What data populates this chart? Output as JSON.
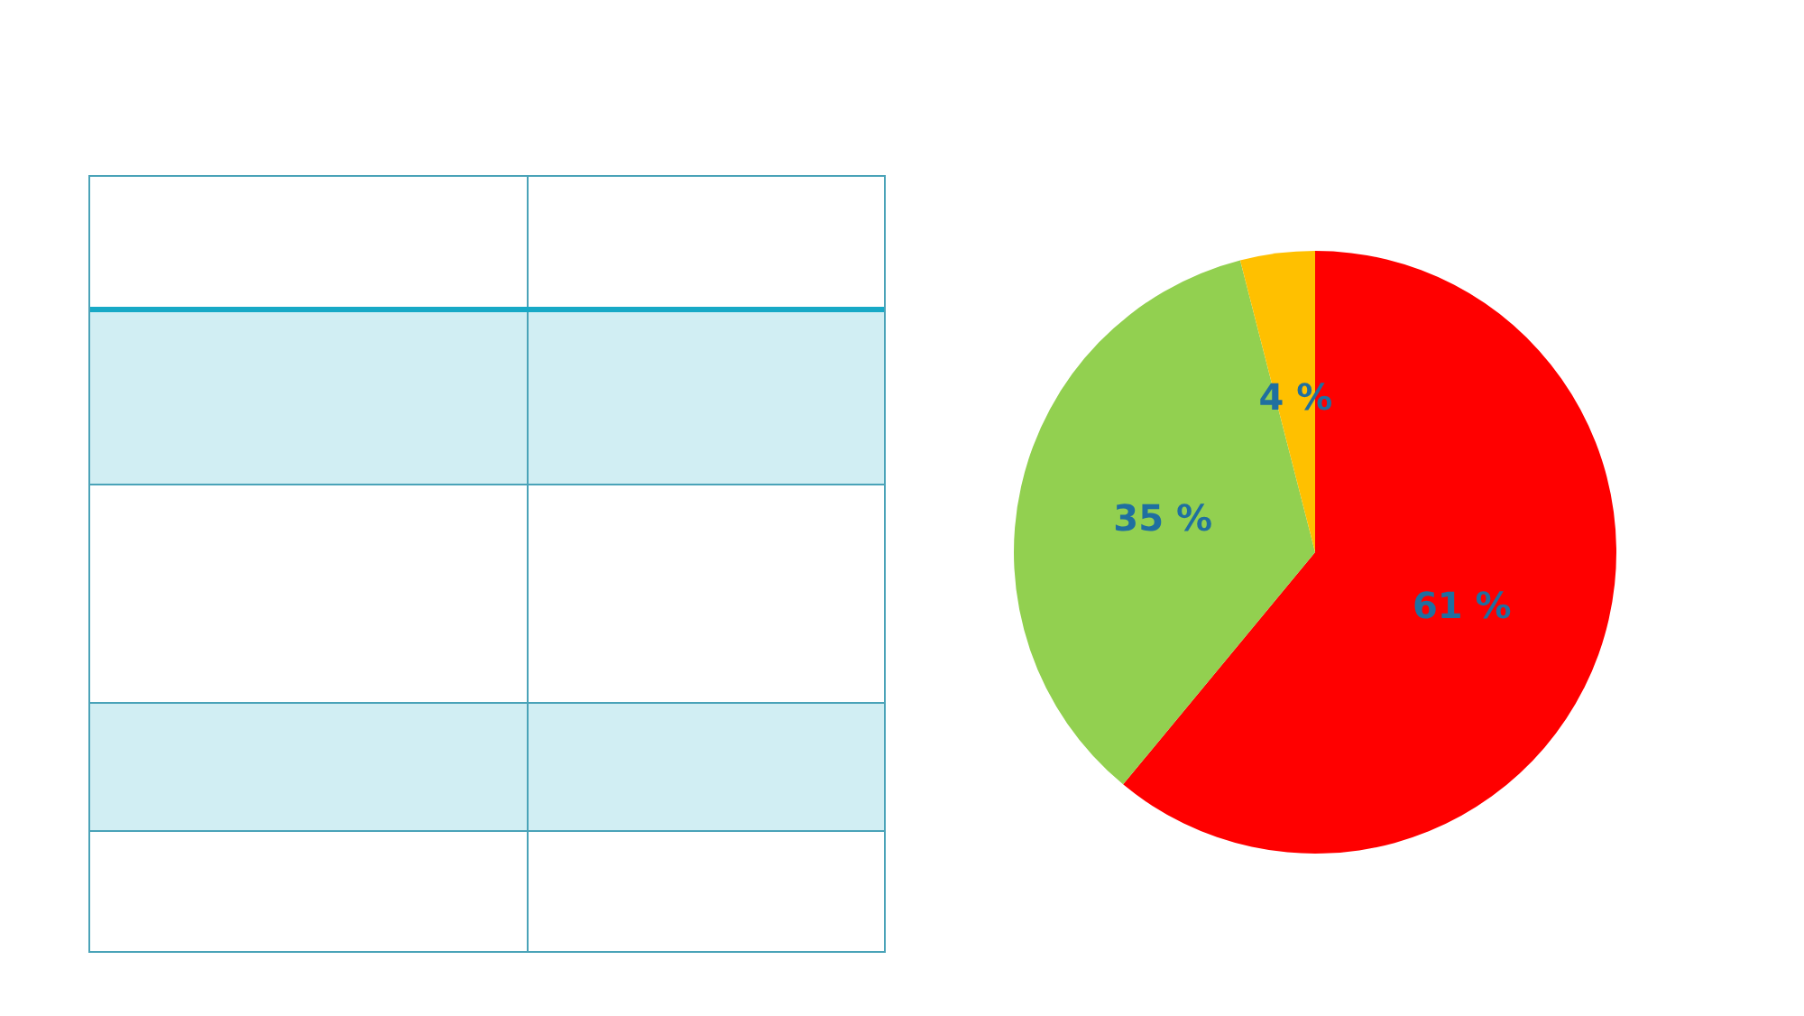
{
  "chart_data": {
    "type": "pie",
    "categories": [
      null,
      null,
      null
    ],
    "values": [
      61,
      35,
      4
    ],
    "colors": [
      "#ff0000",
      "#92d050",
      "#ffc000"
    ],
    "value_labels": [
      "61 %",
      "35 %",
      "4 %"
    ]
  }
}
